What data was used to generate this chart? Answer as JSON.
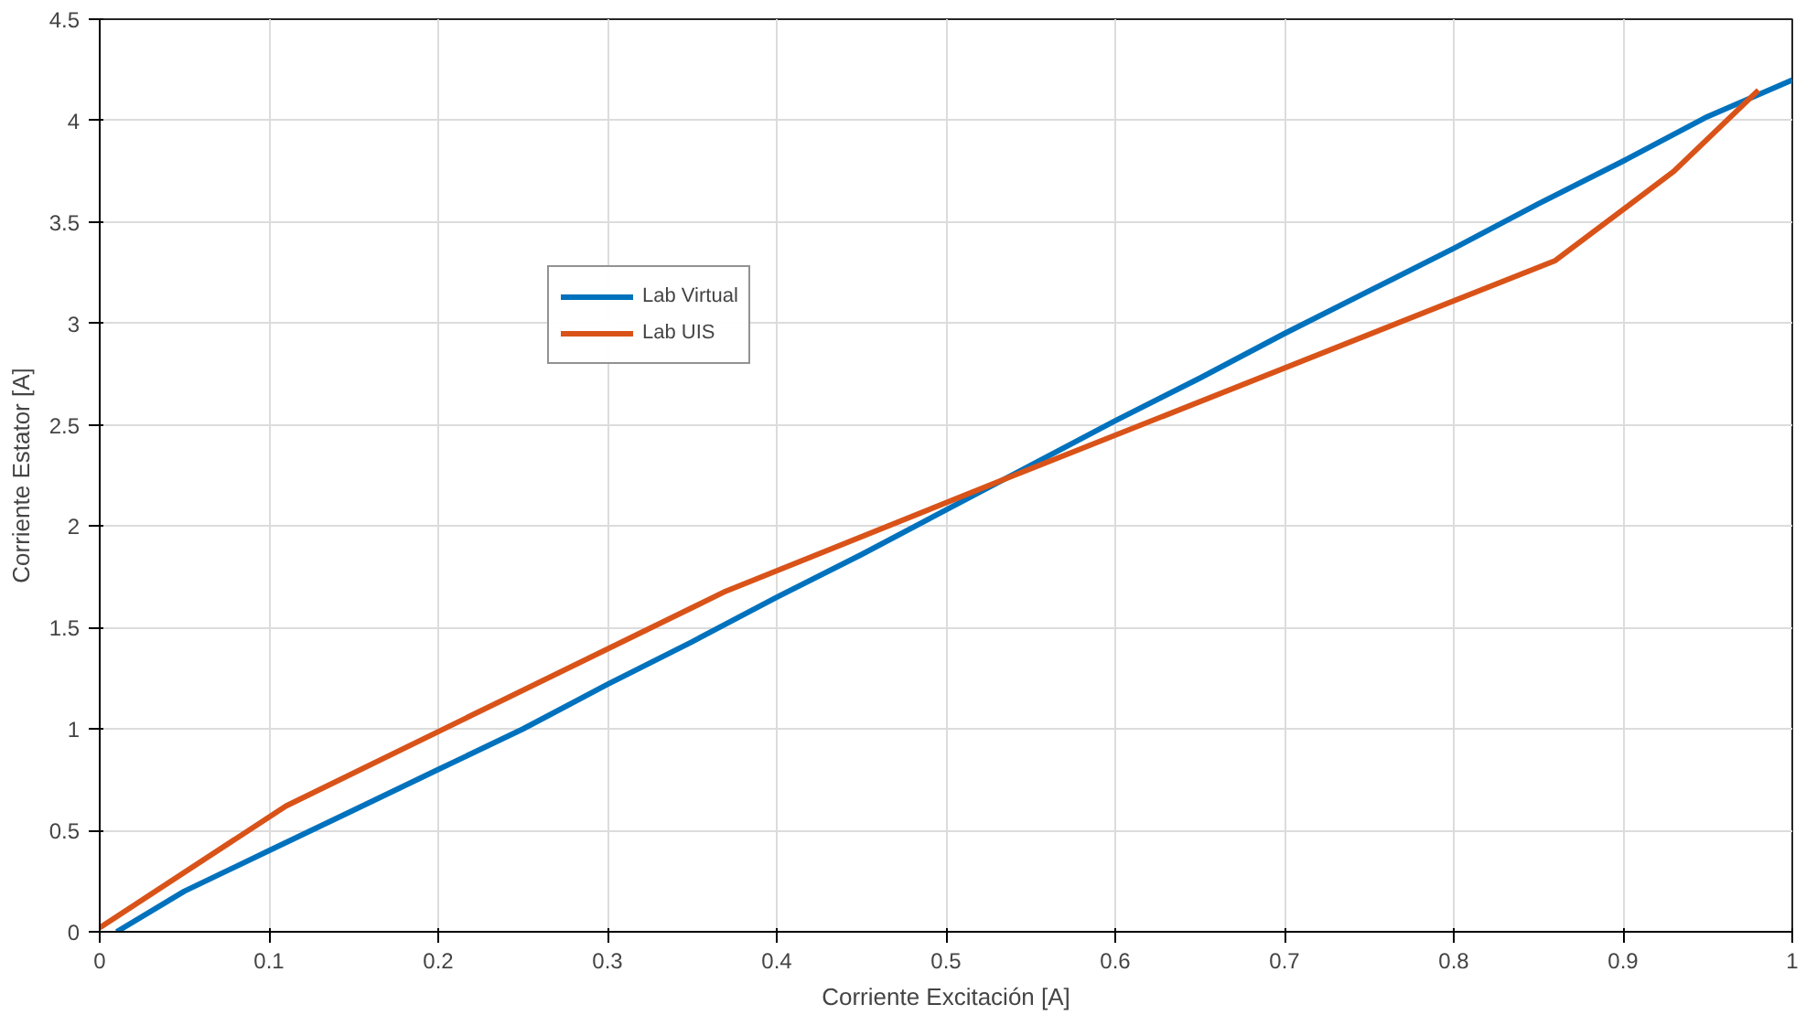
{
  "chart_data": {
    "type": "line",
    "xlabel": "Corriente Excitación [A]",
    "ylabel": "Corriente Estator [A]",
    "xlim": [
      0,
      1
    ],
    "ylim": [
      0,
      4.5
    ],
    "xticks": [
      0,
      0.1,
      0.2,
      0.3,
      0.4,
      0.5,
      0.6,
      0.7,
      0.8,
      0.9,
      1
    ],
    "yticks": [
      0,
      0.5,
      1,
      1.5,
      2,
      2.5,
      3,
      3.5,
      4,
      4.5
    ],
    "grid": true,
    "legend": "top",
    "line_style": "solid",
    "series": [
      {
        "name": "Lab Virtual",
        "color": "#0072bd",
        "x": [
          0.01,
          0.05,
          0.1,
          0.15,
          0.2,
          0.25,
          0.3,
          0.35,
          0.4,
          0.45,
          0.5,
          0.55,
          0.6,
          0.65,
          0.7,
          0.75,
          0.8,
          0.85,
          0.9,
          0.95,
          1
        ],
        "values": [
          0,
          0.2,
          0.4,
          0.6,
          0.8,
          1.0,
          1.22,
          1.43,
          1.65,
          1.86,
          2.08,
          2.3,
          2.52,
          2.73,
          2.95,
          3.16,
          3.37,
          3.59,
          3.8,
          4.02,
          4.2
        ]
      },
      {
        "name": "Lab UIS",
        "color": "#d95319",
        "x": [
          0,
          0.11,
          0.37,
          0.54,
          0.86,
          0.93,
          0.98
        ],
        "values": [
          0.02,
          0.62,
          1.68,
          2.25,
          3.31,
          3.75,
          4.15
        ]
      }
    ]
  }
}
